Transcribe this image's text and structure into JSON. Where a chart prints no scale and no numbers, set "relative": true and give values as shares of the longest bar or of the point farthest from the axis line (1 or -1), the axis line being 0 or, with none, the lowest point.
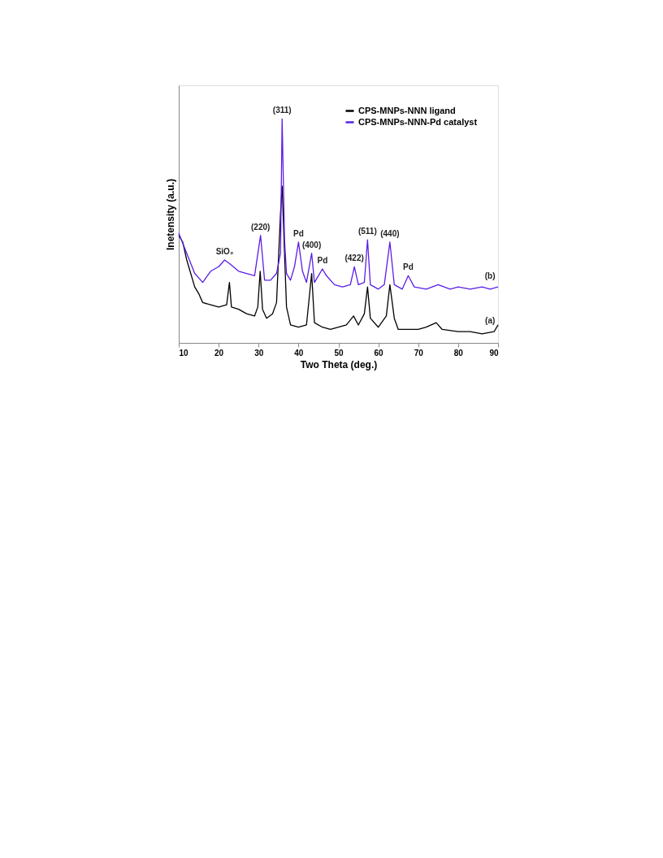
{
  "chart_data": {
    "type": "line",
    "xlabel": "Two Theta (deg.)",
    "ylabel": "Inetensity (a.u.)",
    "relative": true,
    "xlim": [
      10,
      90
    ],
    "xticks": [
      10,
      20,
      30,
      40,
      50,
      60,
      70,
      80,
      90
    ],
    "legend": "top right",
    "line_style": "solid",
    "series": [
      {
        "name": "CPS-MNPs-NNN ligand",
        "color": "#000000",
        "x": [
          10,
          11,
          12,
          13,
          14,
          15,
          16,
          18,
          20,
          22,
          22.7,
          23.2,
          25,
          27,
          29,
          29.8,
          30.4,
          31,
          32,
          33.5,
          34.5,
          35.5,
          35.9,
          36.5,
          37,
          38,
          40,
          42,
          43.3,
          44,
          46,
          48,
          50,
          52,
          53.8,
          55,
          56.5,
          57.3,
          58,
          60,
          62,
          62.9,
          64,
          65,
          67,
          70,
          72,
          74.5,
          76,
          80,
          83,
          86,
          89,
          90
        ],
        "values": [
          0.48,
          0.45,
          0.37,
          0.31,
          0.25,
          0.22,
          0.18,
          0.17,
          0.16,
          0.17,
          0.27,
          0.16,
          0.15,
          0.13,
          0.12,
          0.16,
          0.32,
          0.15,
          0.11,
          0.13,
          0.18,
          0.58,
          0.7,
          0.4,
          0.16,
          0.08,
          0.07,
          0.08,
          0.31,
          0.09,
          0.07,
          0.06,
          0.07,
          0.08,
          0.12,
          0.08,
          0.13,
          0.25,
          0.11,
          0.07,
          0.12,
          0.26,
          0.11,
          0.06,
          0.06,
          0.06,
          0.07,
          0.09,
          0.06,
          0.05,
          0.05,
          0.04,
          0.05,
          0.08
        ]
      },
      {
        "name": "CPS-MNPs-NNN-Pd catalyst",
        "color": "#5a1ee6",
        "x": [
          10,
          12,
          14,
          16,
          18,
          20,
          21.5,
          23,
          25,
          27,
          29,
          30.5,
          31.5,
          33,
          34.5,
          35.5,
          35.9,
          36.5,
          37,
          38,
          39,
          40,
          41,
          42,
          43.3,
          44,
          45,
          46,
          47,
          49,
          51,
          53,
          54,
          55,
          56.5,
          57.3,
          58,
          60,
          61.5,
          62.9,
          64,
          66,
          67.5,
          69,
          72,
          75,
          78,
          80,
          83,
          86,
          88,
          90
        ],
        "values": [
          0.49,
          0.4,
          0.31,
          0.27,
          0.32,
          0.34,
          0.37,
          0.35,
          0.32,
          0.31,
          0.3,
          0.48,
          0.28,
          0.28,
          0.31,
          0.4,
          1.0,
          0.46,
          0.31,
          0.28,
          0.34,
          0.45,
          0.32,
          0.27,
          0.4,
          0.27,
          0.3,
          0.33,
          0.3,
          0.26,
          0.25,
          0.26,
          0.34,
          0.26,
          0.27,
          0.46,
          0.26,
          0.24,
          0.26,
          0.45,
          0.26,
          0.24,
          0.3,
          0.25,
          0.24,
          0.26,
          0.24,
          0.25,
          0.24,
          0.25,
          0.24,
          0.25
        ]
      }
    ],
    "annotations": [
      {
        "text": "(311)",
        "x": 35.9,
        "y": 1.0
      },
      {
        "text": "(220)",
        "x": 30.5,
        "y": 0.48
      },
      {
        "text": "SiO₂",
        "x": 21.5,
        "y": 0.37
      },
      {
        "text": "Pd",
        "x": 40,
        "y": 0.45
      },
      {
        "text": "(400)",
        "x": 43.3,
        "y": 0.4
      },
      {
        "text": "Pd",
        "x": 46,
        "y": 0.33
      },
      {
        "text": "(422)",
        "x": 54,
        "y": 0.34
      },
      {
        "text": "(511)",
        "x": 57.3,
        "y": 0.46
      },
      {
        "text": "(440)",
        "x": 62.9,
        "y": 0.45
      },
      {
        "text": "Pd",
        "x": 67.5,
        "y": 0.3
      },
      {
        "text": "(b)",
        "x": 88,
        "y": 0.26
      },
      {
        "text": "(a)",
        "x": 88,
        "y": 0.06
      }
    ]
  }
}
